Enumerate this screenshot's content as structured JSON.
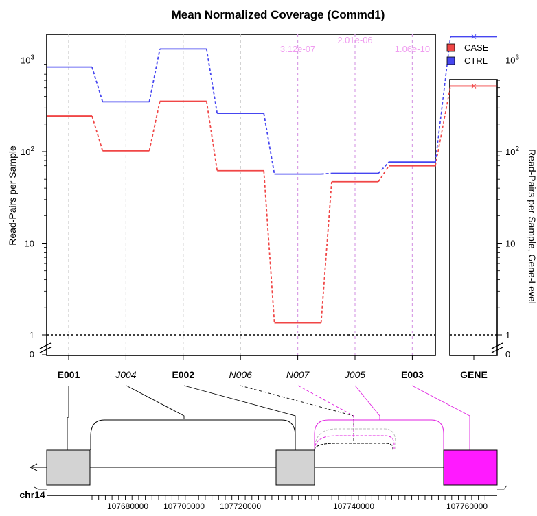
{
  "chart_data": {
    "type": "line",
    "title": "Mean Normalized Coverage (Commd1)",
    "ylabel": "Read-Pairs per Sample",
    "ylabel_right": "Read-Pairs per Sample, Gene-Level",
    "y_scale": "log",
    "y_ticks_left": [
      "1",
      "10",
      "10^2",
      "10^3"
    ],
    "y_ticks_right": [
      "10",
      "10^2",
      "10^3"
    ],
    "zero_label": "0",
    "features": [
      {
        "id": "E001",
        "style": "exon"
      },
      {
        "id": "J004",
        "style": "junction"
      },
      {
        "id": "E002",
        "style": "exon"
      },
      {
        "id": "N006",
        "style": "junction"
      },
      {
        "id": "N007",
        "style": "junction"
      },
      {
        "id": "J005",
        "style": "junction"
      },
      {
        "id": "E003",
        "style": "exon"
      }
    ],
    "gene_label": "GENE",
    "series": [
      {
        "name": "CASE",
        "color": "#f04646",
        "values": [
          245,
          102,
          355,
          62,
          1.35,
          47,
          70
        ],
        "gene_level": 520
      },
      {
        "name": "CTRL",
        "color": "#4646f0",
        "values": [
          840,
          350,
          1320,
          262,
          57,
          58,
          77
        ],
        "gene_level": 1800
      }
    ],
    "pvalues": [
      {
        "feature": "N007",
        "text": "3.12e-07"
      },
      {
        "feature": "J005",
        "text": "2.01e-06"
      },
      {
        "feature": "E003",
        "text": "1.06e-10"
      }
    ],
    "legend_position": "top-right",
    "genome": {
      "chromosome": "chr14",
      "tick_labels": [
        "107680000",
        "107700000",
        "107720000",
        "107740000",
        "107760000"
      ]
    }
  }
}
